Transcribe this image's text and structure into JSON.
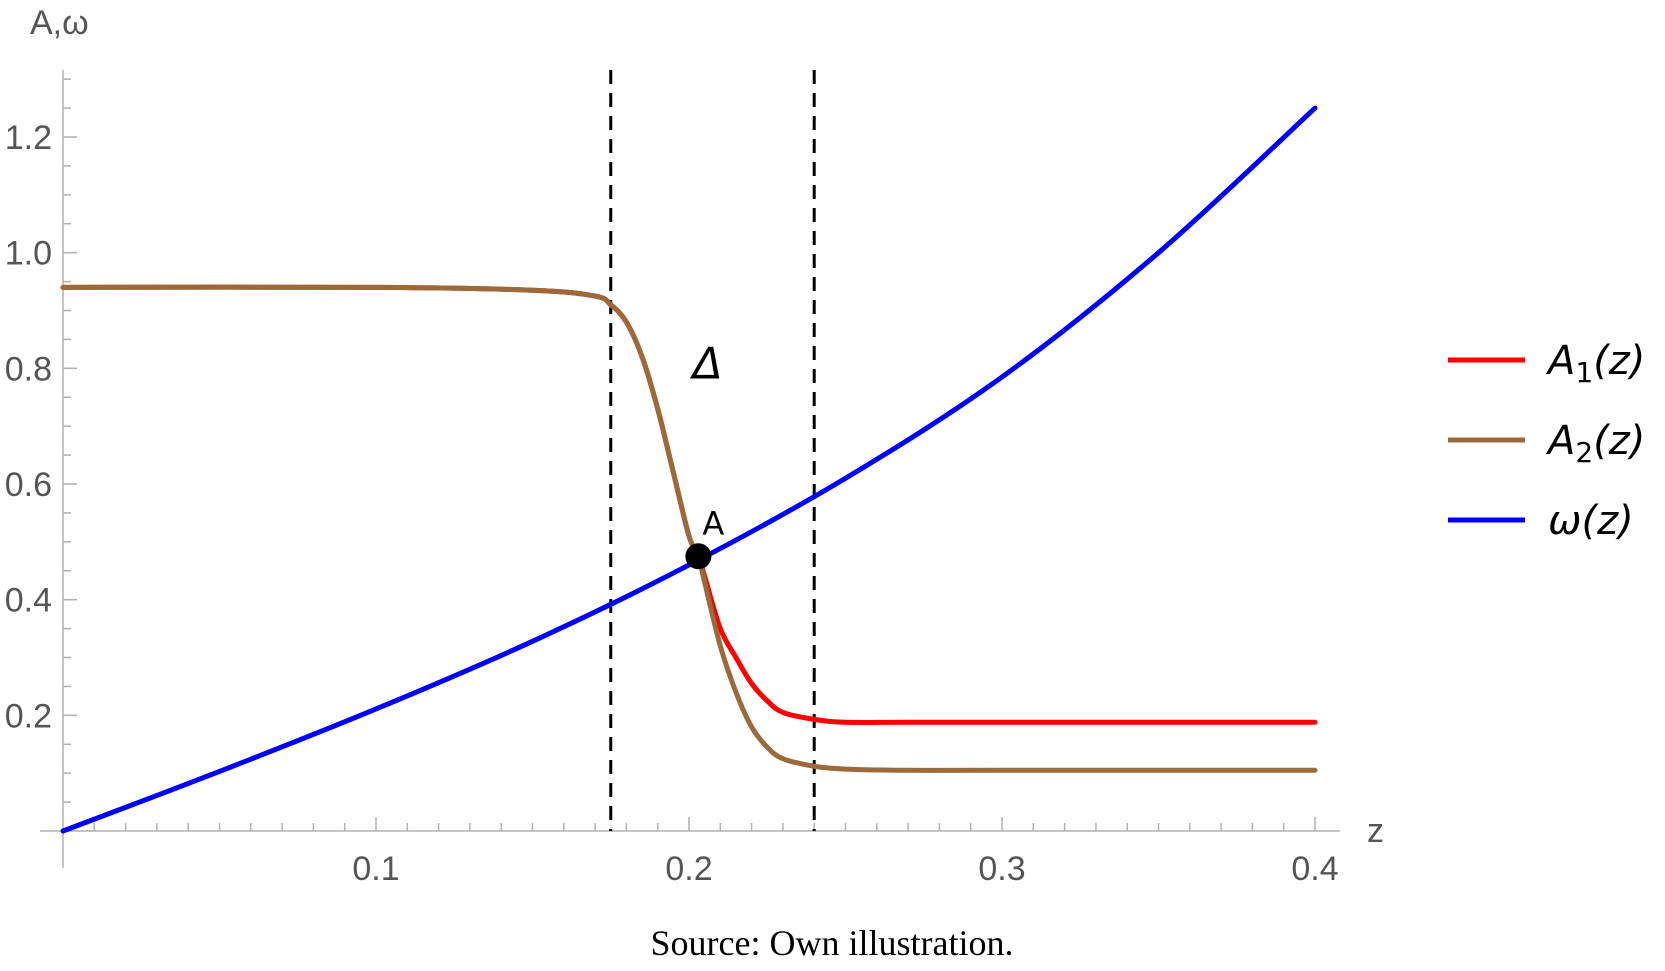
{
  "chart_data": {
    "type": "line",
    "x_label": "z",
    "y_label": "A,ω",
    "xlim": [
      0.0,
      0.4
    ],
    "ylim": [
      0.0,
      1.3
    ],
    "x_ticks": [
      0.1,
      0.2,
      0.3,
      0.4
    ],
    "x_tick_labels": [
      "0.1",
      "0.2",
      "0.3",
      "0.4"
    ],
    "y_ticks": [
      0.2,
      0.4,
      0.6,
      0.8,
      1.0,
      1.2
    ],
    "y_tick_labels": [
      "0.2",
      "0.4",
      "0.6",
      "0.8",
      "1.0",
      "1.2"
    ],
    "grid": false,
    "legend_position": "right",
    "series": [
      {
        "name": "A₁(z)",
        "name_main": "A",
        "name_sub": "1",
        "name_rest": "(z)",
        "color": "#ff0000",
        "x": [
          0.0,
          0.1,
          0.15,
          0.17,
          0.175,
          0.18,
          0.185,
          0.19,
          0.195,
          0.2,
          0.203,
          0.205,
          0.21,
          0.215,
          0.22,
          0.225,
          0.23,
          0.24,
          0.25,
          0.27,
          0.3,
          0.4
        ],
        "y": [
          0.94,
          0.94,
          0.935,
          0.925,
          0.91,
          0.88,
          0.82,
          0.73,
          0.62,
          0.51,
          0.475,
          0.44,
          0.35,
          0.3,
          0.255,
          0.225,
          0.205,
          0.193,
          0.188,
          0.188,
          0.188,
          0.188
        ]
      },
      {
        "name": "A₂(z)",
        "name_main": "A",
        "name_sub": "2",
        "name_rest": "(z)",
        "color": "#9b6a3a",
        "x": [
          0.0,
          0.1,
          0.15,
          0.17,
          0.175,
          0.18,
          0.185,
          0.19,
          0.195,
          0.2,
          0.203,
          0.205,
          0.21,
          0.215,
          0.22,
          0.225,
          0.23,
          0.24,
          0.25,
          0.27,
          0.3,
          0.4
        ],
        "y": [
          0.94,
          0.94,
          0.935,
          0.925,
          0.91,
          0.88,
          0.82,
          0.73,
          0.62,
          0.51,
          0.475,
          0.43,
          0.32,
          0.24,
          0.18,
          0.145,
          0.125,
          0.112,
          0.107,
          0.105,
          0.105,
          0.105
        ]
      },
      {
        "name": "ω(z)",
        "name_main": "ω(z)",
        "name_sub": "",
        "name_rest": "",
        "color": "#0000ff",
        "x": [
          0.0,
          0.05,
          0.1,
          0.15,
          0.2,
          0.25,
          0.3,
          0.35,
          0.4
        ],
        "y": [
          0.0,
          0.103,
          0.211,
          0.328,
          0.46,
          0.61,
          0.785,
          1.0,
          1.25
        ]
      }
    ],
    "vertical_lines": [
      0.175,
      0.24
    ],
    "point": {
      "label": "A",
      "x": 0.203,
      "y": 0.475
    },
    "region_label": {
      "text": "Δ",
      "x": 0.205,
      "y": 0.81
    },
    "source_note": "Source:  Own illustration."
  }
}
